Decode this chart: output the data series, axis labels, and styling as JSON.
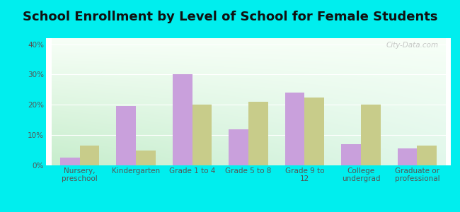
{
  "title": "School Enrollment by Level of School for Female Students",
  "categories": [
    "Nursery,\npreschool",
    "Kindergarten",
    "Grade 1 to 4",
    "Grade 5 to 8",
    "Grade 9 to\n12",
    "College\nundergrad",
    "Graduate or\nprofessional"
  ],
  "goodhue": [
    2.5,
    19.5,
    30.0,
    12.0,
    24.0,
    7.0,
    5.5
  ],
  "minnesota": [
    6.5,
    5.0,
    20.0,
    21.0,
    22.5,
    20.0,
    6.5
  ],
  "goodhue_color": "#c9a0dc",
  "minnesota_color": "#c8cc8a",
  "background_outer": "#00eeee",
  "ylim": [
    0,
    42
  ],
  "yticks": [
    0,
    10,
    20,
    30,
    40
  ],
  "ytick_labels": [
    "0%",
    "10%",
    "20%",
    "30%",
    "40%"
  ],
  "bar_width": 0.35,
  "title_fontsize": 13,
  "tick_fontsize": 7.5,
  "legend_fontsize": 9,
  "watermark": "City-Data.com"
}
